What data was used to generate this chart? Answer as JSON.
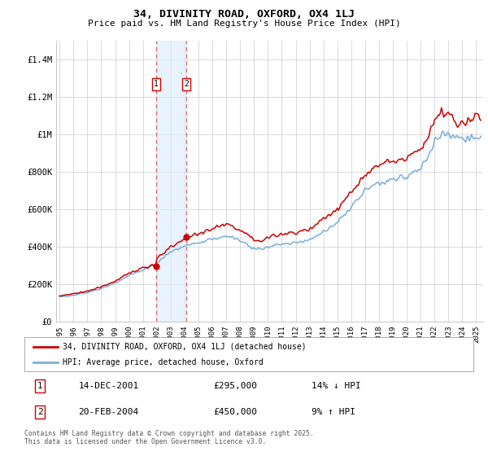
{
  "title": "34, DIVINITY ROAD, OXFORD, OX4 1LJ",
  "subtitle": "Price paid vs. HM Land Registry's House Price Index (HPI)",
  "ylim": [
    0,
    1500000
  ],
  "yticks": [
    0,
    200000,
    400000,
    600000,
    800000,
    1000000,
    1200000,
    1400000
  ],
  "ytick_labels": [
    "£0",
    "£200K",
    "£400K",
    "£600K",
    "£800K",
    "£1M",
    "£1.2M",
    "£1.4M"
  ],
  "legend_entry1": "34, DIVINITY ROAD, OXFORD, OX4 1LJ (detached house)",
  "legend_entry2": "HPI: Average price, detached house, Oxford",
  "transaction1_date": "14-DEC-2001",
  "transaction1_price": "£295,000",
  "transaction1_change": "14% ↓ HPI",
  "transaction2_date": "20-FEB-2004",
  "transaction2_price": "£450,000",
  "transaction2_change": "9% ↑ HPI",
  "footnote": "Contains HM Land Registry data © Crown copyright and database right 2025.\nThis data is licensed under the Open Government Licence v3.0.",
  "property_color": "#cc0000",
  "hpi_color": "#7aaed6",
  "transaction1_x": 2001.96,
  "transaction1_y": 295000,
  "transaction2_x": 2004.12,
  "transaction2_y": 450000,
  "xlim": [
    1994.75,
    2025.5
  ],
  "xticks": [
    1995,
    1996,
    1997,
    1998,
    1999,
    2000,
    2001,
    2002,
    2003,
    2004,
    2005,
    2006,
    2007,
    2008,
    2009,
    2010,
    2011,
    2012,
    2013,
    2014,
    2015,
    2016,
    2017,
    2018,
    2019,
    2020,
    2021,
    2022,
    2023,
    2024,
    2025
  ],
  "background_color": "#ffffff",
  "grid_color": "#cccccc",
  "shaded_region_x1": 2001.96,
  "shaded_region_x2": 2004.12
}
